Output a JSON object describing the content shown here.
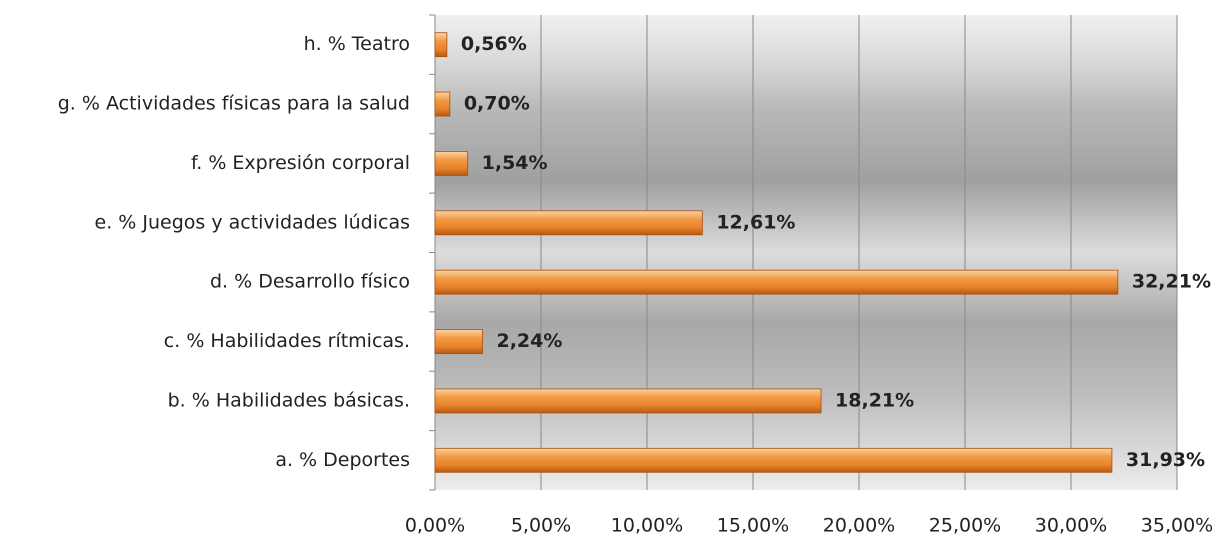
{
  "chart_data": {
    "type": "bar",
    "orientation": "horizontal",
    "categories": [
      "a.  % Deportes",
      "b. % Habilidades básicas.",
      "c. % Habilidades rítmicas.",
      "d. % Desarrollo físico",
      "e. % Juegos y actividades lúdicas",
      "f. % Expresión corporal",
      "g. % Actividades físicas para la salud",
      "h. % Teatro"
    ],
    "values": [
      31.93,
      18.21,
      2.24,
      32.21,
      12.61,
      1.54,
      0.7,
      0.56
    ],
    "value_labels": [
      "31,93%",
      "18,21%",
      "2,24%",
      "32,21%",
      "12,61%",
      "1,54%",
      "0,70%",
      "0,56%"
    ],
    "color": "#e8822a",
    "xlim": [
      0,
      35
    ],
    "xticks": [
      {
        "value": 0,
        "label": "0,00%"
      },
      {
        "value": 5,
        "label": "5,00%"
      },
      {
        "value": 10,
        "label": "10,00%"
      },
      {
        "value": 15,
        "label": "15,00%"
      },
      {
        "value": 20,
        "label": "20,00%"
      },
      {
        "value": 25,
        "label": "25,00%"
      },
      {
        "value": 30,
        "label": "30,00%"
      },
      {
        "value": 35,
        "label": "35,00%"
      }
    ],
    "grid": true
  }
}
